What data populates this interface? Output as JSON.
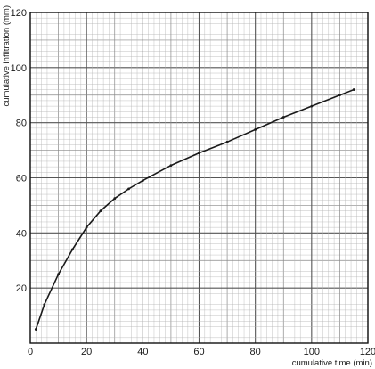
{
  "chart_data": {
    "type": "line",
    "title": "",
    "xlabel": "cumulative time (min)",
    "ylabel": "cumulative infiltration (mm)",
    "xlim": [
      0,
      120
    ],
    "ylim": [
      0,
      120
    ],
    "x_ticks": [
      "0",
      "20",
      "40",
      "60",
      "80",
      "100",
      "120"
    ],
    "y_ticks": [
      "20",
      "40",
      "60",
      "80",
      "100",
      "120"
    ],
    "grid": true,
    "series": [
      {
        "x": [
          2,
          5,
          10,
          15,
          20,
          25,
          30,
          35,
          40,
          50,
          60,
          70,
          80,
          90,
          100,
          110,
          115
        ],
        "y": [
          5,
          14,
          25,
          34,
          42,
          48,
          52.5,
          56,
          59,
          64.5,
          69,
          73,
          77.5,
          82,
          86,
          90,
          92
        ]
      }
    ]
  }
}
